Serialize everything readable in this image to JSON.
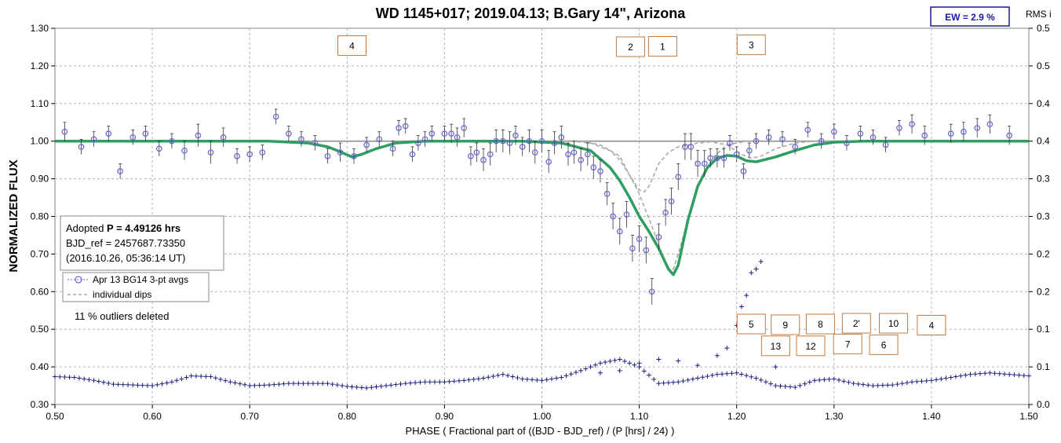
{
  "chart_data": {
    "type": "scatter",
    "title": "WD 1145+017; 2019.04.13; B.Gary 14\", Arizona",
    "xlabel": "PHASE ( Fractional part of ((BJD - BJD_ref) / (P [hrs] / 24) )",
    "ylabel": "NORMALIZED FLUX",
    "y2label": "RMS i",
    "xlim": [
      0.5,
      1.5
    ],
    "ylim": [
      0.3,
      1.3
    ],
    "y2lim": [
      0.0,
      0.5
    ],
    "x_ticks": [
      "0.50",
      "0.60",
      "0.70",
      "0.80",
      "0.90",
      "1.00",
      "1.10",
      "1.20",
      "1.30",
      "1.40",
      "1.50"
    ],
    "y_ticks": [
      "0.30",
      "0.40",
      "0.50",
      "0.60",
      "0.70",
      "0.80",
      "0.90",
      "1.00",
      "1.10",
      "1.20",
      "1.30"
    ],
    "y2_ticks": [
      "0.0",
      "0.1",
      "0.1",
      "0.2",
      "0.2",
      "0.3",
      "0.3",
      "0.4",
      "0.4",
      "0.5",
      "0.5"
    ],
    "grid": true,
    "ew_label": "EW =  2.9 %",
    "info_box": {
      "line1_prefix": "Adopted ",
      "line1_bold": "P = 4.49126 hrs",
      "line2": "BJD_ref = 2457687.73350",
      "line3": "(2016.10.26, 05:36:14 UT)"
    },
    "legend": {
      "entries": [
        "Apr 13 BG14 3-pt avgs",
        "individual dips"
      ],
      "placement": "left-middle"
    },
    "outlier_note": "11 % outliers deleted",
    "dip_labels": [
      {
        "text": "4",
        "x": 0.805,
        "y": 1.255
      },
      {
        "text": "2",
        "x": 1.091,
        "y": 1.252
      },
      {
        "text": "1",
        "x": 1.124,
        "y": 1.253
      },
      {
        "text": "3",
        "x": 1.215,
        "y": 1.257
      },
      {
        "text": "5",
        "x": 1.215,
        "y": 0.515
      },
      {
        "text": "9",
        "x": 1.25,
        "y": 0.513
      },
      {
        "text": "8",
        "x": 1.286,
        "y": 0.515
      },
      {
        "text": "2'",
        "x": 1.323,
        "y": 0.517
      },
      {
        "text": "10",
        "x": 1.361,
        "y": 0.517
      },
      {
        "text": "4",
        "x": 1.4,
        "y": 0.512
      },
      {
        "text": "13",
        "x": 1.24,
        "y": 0.457
      },
      {
        "text": "12",
        "x": 1.276,
        "y": 0.457
      },
      {
        "text": "7",
        "x": 1.314,
        "y": 0.462
      },
      {
        "text": "6",
        "x": 1.351,
        "y": 0.46
      }
    ],
    "series": [
      {
        "name": "Apr 13 BG14 3-pt avgs",
        "kind": "points_with_errorbars",
        "color": "#6b6bd6",
        "x": [
          0.51,
          0.527,
          0.54,
          0.555,
          0.567,
          0.58,
          0.593,
          0.607,
          0.62,
          0.633,
          0.647,
          0.66,
          0.673,
          0.687,
          0.7,
          0.713,
          0.727,
          0.74,
          0.753,
          0.767,
          0.78,
          0.793,
          0.807,
          0.82,
          0.833,
          0.847,
          0.853,
          0.86,
          0.867,
          0.873,
          0.88,
          0.887,
          0.9,
          0.907,
          0.913,
          0.92,
          0.927,
          0.933,
          0.94,
          0.947,
          0.953,
          0.96,
          0.967,
          0.973,
          0.98,
          0.987,
          0.993,
          1.0,
          1.007,
          1.013,
          1.02,
          1.027,
          1.033,
          1.04,
          1.047,
          1.053,
          1.06,
          1.067,
          1.073,
          1.08,
          1.087,
          1.093,
          1.1,
          1.107,
          1.113,
          1.12,
          1.127,
          1.133,
          1.14,
          1.147,
          1.153,
          1.16,
          1.167,
          1.173,
          1.18,
          1.187,
          1.193,
          1.2,
          1.207,
          1.213,
          1.22,
          1.233,
          1.247,
          1.26,
          1.273,
          1.287,
          1.3,
          1.313,
          1.327,
          1.34,
          1.353,
          1.367,
          1.38,
          1.393,
          1.42,
          1.433,
          1.447,
          1.46,
          1.48
        ],
        "y": [
          1.025,
          0.985,
          1.005,
          1.02,
          0.92,
          1.01,
          1.02,
          0.98,
          1.0,
          0.975,
          1.015,
          0.97,
          1.01,
          0.96,
          0.965,
          0.97,
          1.065,
          1.02,
          1.005,
          0.995,
          0.96,
          0.97,
          0.96,
          0.99,
          1.005,
          0.98,
          1.035,
          1.04,
          0.965,
          0.995,
          1.005,
          1.02,
          1.02,
          1.02,
          1.01,
          1.035,
          0.96,
          0.97,
          0.95,
          0.965,
          1.0,
          1.0,
          0.995,
          1.015,
          0.985,
          1.0,
          0.97,
          1.0,
          0.945,
          0.995,
          1.01,
          0.965,
          0.97,
          0.95,
          0.965,
          0.93,
          0.92,
          0.86,
          0.8,
          0.76,
          0.805,
          0.715,
          0.74,
          0.71,
          0.6,
          0.745,
          0.81,
          0.84,
          0.905,
          0.985,
          0.985,
          0.94,
          0.94,
          0.955,
          0.955,
          0.955,
          0.995,
          0.965,
          0.92,
          0.975,
          1.0,
          1.01,
          1.005,
          0.985,
          1.03,
          1.0,
          1.025,
          0.995,
          1.02,
          1.01,
          0.99,
          1.035,
          1.045,
          1.015,
          1.02,
          1.025,
          1.035,
          1.045,
          1.015
        ],
        "err": [
          0.025,
          0.02,
          0.02,
          0.02,
          0.02,
          0.02,
          0.02,
          0.02,
          0.02,
          0.025,
          0.03,
          0.03,
          0.025,
          0.02,
          0.02,
          0.02,
          0.02,
          0.02,
          0.02,
          0.02,
          0.02,
          0.025,
          0.02,
          0.02,
          0.02,
          0.02,
          0.02,
          0.02,
          0.02,
          0.02,
          0.02,
          0.02,
          0.02,
          0.025,
          0.025,
          0.025,
          0.025,
          0.025,
          0.03,
          0.03,
          0.03,
          0.03,
          0.03,
          0.025,
          0.025,
          0.03,
          0.03,
          0.03,
          0.03,
          0.03,
          0.03,
          0.03,
          0.03,
          0.03,
          0.03,
          0.03,
          0.03,
          0.03,
          0.035,
          0.035,
          0.035,
          0.035,
          0.035,
          0.035,
          0.035,
          0.035,
          0.035,
          0.035,
          0.035,
          0.035,
          0.035,
          0.035,
          0.035,
          0.025,
          0.025,
          0.025,
          0.02,
          0.02,
          0.02,
          0.02,
          0.02,
          0.02,
          0.02,
          0.02,
          0.02,
          0.02,
          0.02,
          0.02,
          0.02,
          0.02,
          0.02,
          0.02,
          0.025,
          0.025,
          0.025,
          0.025,
          0.025,
          0.025,
          0.025
        ]
      },
      {
        "name": "individual dips",
        "kind": "dashed_line",
        "color": "#aaaaaa",
        "x": [
          1.03,
          1.05,
          1.07,
          1.08,
          1.09,
          1.1,
          1.105,
          1.11,
          1.115,
          1.12,
          1.13,
          1.14,
          1.16,
          1.18,
          1.2
        ],
        "y": [
          1.0,
          0.995,
          0.975,
          0.95,
          0.91,
          0.87,
          0.865,
          0.88,
          0.91,
          0.94,
          0.97,
          0.985,
          0.995,
          1.0,
          1.0
        ]
      },
      {
        "kind": "dashed_line",
        "color": "#aaaaaa",
        "x": [
          1.04,
          1.06,
          1.08,
          1.1,
          1.115,
          1.125,
          1.13,
          1.135,
          1.14,
          1.15,
          1.16,
          1.175,
          1.19,
          1.21,
          1.23
        ],
        "y": [
          1.0,
          0.99,
          0.96,
          0.86,
          0.76,
          0.69,
          0.66,
          0.66,
          0.7,
          0.79,
          0.88,
          0.955,
          0.99,
          1.0,
          1.0
        ]
      },
      {
        "kind": "dashed_line",
        "color": "#aaaaaa",
        "x": [
          1.17,
          1.19,
          1.205,
          1.215,
          1.225,
          1.24,
          1.26,
          1.28
        ],
        "y": [
          1.0,
          0.99,
          0.965,
          0.955,
          0.96,
          0.98,
          0.995,
          1.0
        ]
      },
      {
        "kind": "model_line",
        "color": "#2e9e63",
        "x": [
          0.5,
          0.72,
          0.76,
          0.78,
          0.79,
          0.805,
          0.815,
          0.83,
          0.85,
          0.88,
          0.92,
          0.98,
          1.02,
          1.05,
          1.07,
          1.08,
          1.09,
          1.1,
          1.11,
          1.12,
          1.13,
          1.135,
          1.14,
          1.15,
          1.16,
          1.17,
          1.18,
          1.19,
          1.2,
          1.21,
          1.22,
          1.24,
          1.26,
          1.28,
          1.3,
          1.33,
          1.4,
          1.5
        ],
        "y": [
          1.0,
          1.0,
          0.995,
          0.985,
          0.975,
          0.958,
          0.965,
          0.98,
          0.995,
          1.0,
          1.0,
          1.0,
          0.995,
          0.975,
          0.93,
          0.895,
          0.85,
          0.8,
          0.76,
          0.715,
          0.66,
          0.645,
          0.67,
          0.79,
          0.88,
          0.93,
          0.955,
          0.962,
          0.96,
          0.948,
          0.945,
          0.958,
          0.975,
          0.99,
          0.997,
          1.0,
          1.0,
          1.0
        ]
      },
      {
        "name": "RMS i",
        "kind": "crosses_right_axis",
        "color": "#1c1c80",
        "x": [
          0.5,
          0.52,
          0.54,
          0.56,
          0.58,
          0.6,
          0.62,
          0.64,
          0.66,
          0.68,
          0.7,
          0.72,
          0.74,
          0.76,
          0.78,
          0.8,
          0.82,
          0.84,
          0.86,
          0.88,
          0.9,
          0.92,
          0.94,
          0.96,
          0.98,
          1.0,
          1.02,
          1.04,
          1.06,
          1.08,
          1.1,
          1.12,
          1.14,
          1.16,
          1.18,
          1.2,
          1.22,
          1.24,
          1.26,
          1.28,
          1.3,
          1.32,
          1.34,
          1.36,
          1.38,
          1.4,
          1.42,
          1.44,
          1.46,
          1.48,
          1.5
        ],
        "y": [
          0.037,
          0.036,
          0.032,
          0.027,
          0.026,
          0.025,
          0.03,
          0.038,
          0.037,
          0.03,
          0.025,
          0.026,
          0.028,
          0.028,
          0.028,
          0.024,
          0.022,
          0.025,
          0.028,
          0.03,
          0.03,
          0.032,
          0.035,
          0.04,
          0.034,
          0.032,
          0.036,
          0.045,
          0.055,
          0.06,
          0.05,
          0.028,
          0.03,
          0.035,
          0.04,
          0.042,
          0.035,
          0.025,
          0.023,
          0.032,
          0.034,
          0.028,
          0.025,
          0.026,
          0.03,
          0.032,
          0.036,
          0.04,
          0.042,
          0.04,
          0.038
        ]
      },
      {
        "kind": "crosses_right_axis_secondary",
        "color": "#1c1c80",
        "x": [
          1.06,
          1.08,
          1.1,
          1.12,
          1.14,
          1.16,
          1.18,
          1.19,
          1.2,
          1.205,
          1.21,
          1.215,
          1.22,
          1.225,
          1.24
        ],
        "y": [
          0.042,
          0.045,
          0.055,
          0.06,
          0.058,
          0.052,
          0.065,
          0.075,
          0.105,
          0.13,
          0.145,
          0.175,
          0.18,
          0.19,
          0.05
        ]
      }
    ]
  }
}
